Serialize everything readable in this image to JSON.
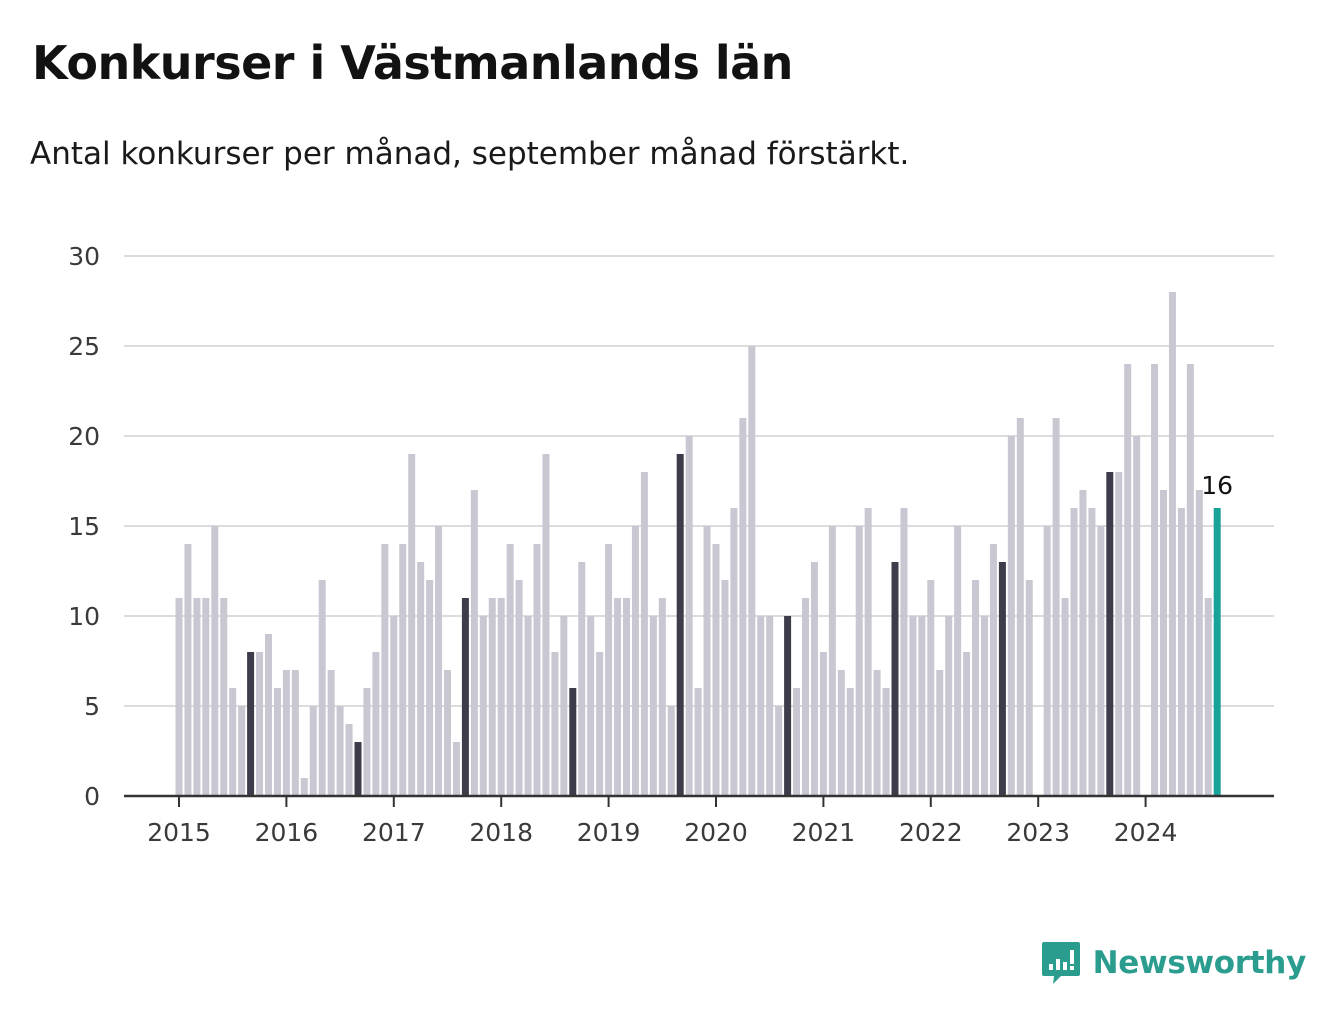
{
  "title": "Konkurser i Västmanlands län",
  "subtitle": "Antal konkurser per månad, september månad förstärkt.",
  "brand": {
    "name": "Newsworthy",
    "icon": "newsworthy-logo-icon"
  },
  "colors": {
    "bar": "#c8c7d2",
    "highlight": "#3d3c4a",
    "latest": "#17a398",
    "grid": "#dcdcdc",
    "axis": "#333333",
    "brand": "#2a9d8f"
  },
  "chart_data": {
    "type": "bar",
    "ylim": [
      0,
      30
    ],
    "yticks": [
      0,
      5,
      10,
      15,
      20,
      25,
      30
    ],
    "grid": true,
    "x_tick_labels": [
      "2015",
      "2016",
      "2017",
      "2018",
      "2019",
      "2020",
      "2021",
      "2022",
      "2023",
      "2024"
    ],
    "start": "2015-01",
    "end": "2024-09",
    "highlight_month": "September",
    "latest_value_label": "16",
    "series": [
      {
        "year": "2015",
        "values": [
          11,
          14,
          11,
          11,
          15,
          11,
          6,
          5,
          8,
          8,
          9,
          6
        ]
      },
      {
        "year": "2016",
        "values": [
          7,
          7,
          1,
          5,
          12,
          7,
          5,
          4,
          3,
          6,
          8,
          14
        ]
      },
      {
        "year": "2017",
        "values": [
          10,
          14,
          19,
          13,
          12,
          15,
          7,
          3,
          11,
          17,
          10,
          11
        ]
      },
      {
        "year": "2018",
        "values": [
          11,
          14,
          12,
          10,
          14,
          19,
          8,
          10,
          6,
          13,
          10,
          8
        ]
      },
      {
        "year": "2019",
        "values": [
          14,
          11,
          11,
          15,
          18,
          10,
          11,
          5,
          19,
          20,
          6,
          15
        ]
      },
      {
        "year": "2020",
        "values": [
          14,
          12,
          16,
          21,
          25,
          10,
          10,
          5,
          10,
          6,
          11,
          13
        ]
      },
      {
        "year": "2021",
        "values": [
          8,
          15,
          7,
          6,
          15,
          16,
          7,
          6,
          13,
          16,
          10,
          10
        ]
      },
      {
        "year": "2022",
        "values": [
          12,
          7,
          10,
          15,
          8,
          12,
          10,
          14,
          13,
          20,
          21,
          12
        ]
      },
      {
        "year": "2023",
        "values": [
          0,
          15,
          21,
          11,
          16,
          17,
          16,
          15,
          18,
          18,
          24,
          20
        ]
      },
      {
        "year": "2024",
        "values": [
          0,
          24,
          17,
          28,
          16,
          24,
          17,
          11,
          16
        ]
      }
    ]
  }
}
